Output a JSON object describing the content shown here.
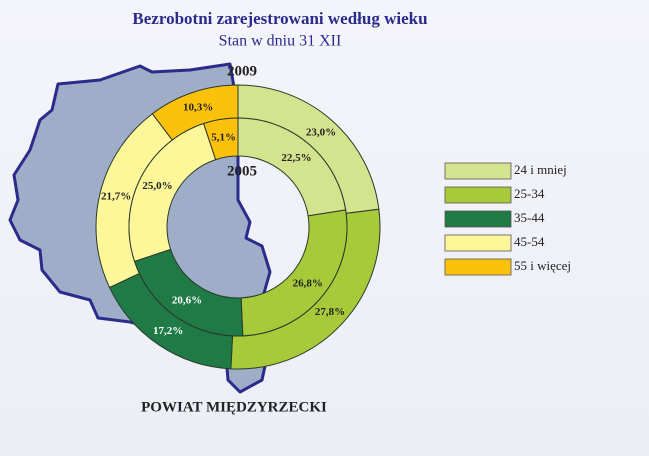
{
  "chart_data": {
    "type": "donut",
    "title": "Bezrobotni zarejestrowani według wieku",
    "subtitle": "Stan w dniu 31 XII",
    "annotation": "POWIAT MIĘDZYRZECKI",
    "categories": [
      "24 i mniej",
      "25-34",
      "35-44",
      "45-54",
      "55 i więcej"
    ],
    "colors": [
      "#d4e38e",
      "#a8c93a",
      "#1f7a46",
      "#fdf79a",
      "#fcc10a"
    ],
    "legend": "right",
    "series": [
      {
        "name": "2009",
        "values": [
          23.0,
          27.8,
          17.2,
          21.7,
          10.3
        ],
        "value_labels": [
          "23,0%",
          "27,8%",
          "17,2%",
          "21,7%",
          "10,3%"
        ]
      },
      {
        "name": "2005",
        "values": [
          22.5,
          26.8,
          20.6,
          25.0,
          5.1
        ],
        "value_labels": [
          "22,5%",
          "26,8%",
          "20,6%",
          "25,0%",
          "5,1%"
        ]
      }
    ]
  }
}
